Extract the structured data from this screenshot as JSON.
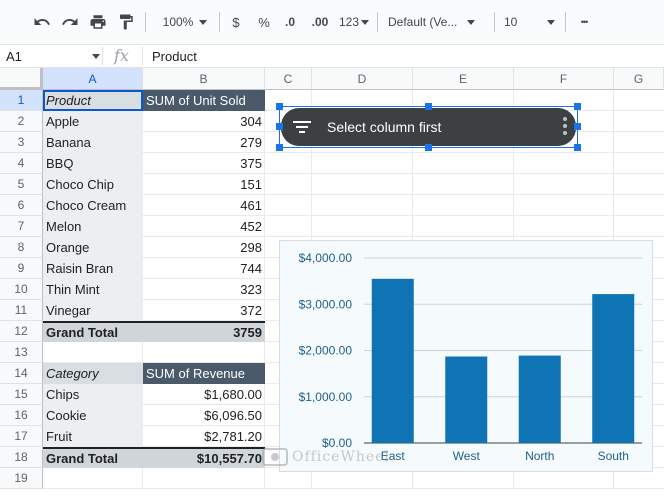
{
  "toolbar": {
    "zoom": "100%",
    "currency": "$",
    "percent": "%",
    "decrease_decimal": ".0",
    "increase_decimal": ".00",
    "number_format": "123",
    "font": "Default (Ve...",
    "font_size": "10",
    "more": "•••"
  },
  "formula_bar": {
    "cell_ref": "A1",
    "fx": "fx",
    "value": "Product"
  },
  "columns": [
    "A",
    "B",
    "C",
    "D",
    "E",
    "F",
    "G"
  ],
  "rows": [
    "1",
    "2",
    "3",
    "4",
    "5",
    "6",
    "7",
    "8",
    "9",
    "10",
    "11",
    "12",
    "13",
    "14",
    "15",
    "16",
    "17",
    "18",
    "19"
  ],
  "pivot1": {
    "header": [
      "Product",
      "SUM of Unit Sold"
    ],
    "rows": [
      [
        "Apple",
        "304"
      ],
      [
        "Banana",
        "279"
      ],
      [
        "BBQ",
        "375"
      ],
      [
        "Choco Chip",
        "151"
      ],
      [
        "Choco Cream",
        "461"
      ],
      [
        "Melon",
        "452"
      ],
      [
        "Orange",
        "298"
      ],
      [
        "Raisin Bran",
        "744"
      ],
      [
        "Thin Mint",
        "323"
      ],
      [
        "Vinegar",
        "372"
      ]
    ],
    "total": [
      "Grand Total",
      "3759"
    ]
  },
  "pivot2": {
    "header": [
      "Category",
      "SUM of Revenue"
    ],
    "rows": [
      [
        "Chips",
        "$1,680.00"
      ],
      [
        "Cookie",
        "$6,096.50"
      ],
      [
        "Fruit",
        "$2,781.20"
      ]
    ],
    "total": [
      "Grand Total",
      "$10,557.70"
    ]
  },
  "filter_widget": {
    "label": "Select column first",
    "icon": "filter-icon"
  },
  "chart_data": {
    "type": "bar",
    "categories": [
      "East",
      "West",
      "North",
      "South"
    ],
    "values": [
      3550,
      1870,
      1890,
      3220
    ],
    "yticks": [
      "$0.00",
      "$1,000.00",
      "$2,000.00",
      "$3,000.00",
      "$4,000.00"
    ],
    "ylim": [
      0,
      4000
    ],
    "bar_color": "#0f74b3",
    "grid": true
  },
  "watermark": "OfficeWheel",
  "colors": {
    "pivot_header": "#4a5a6a",
    "selection": "#1a73e8"
  }
}
